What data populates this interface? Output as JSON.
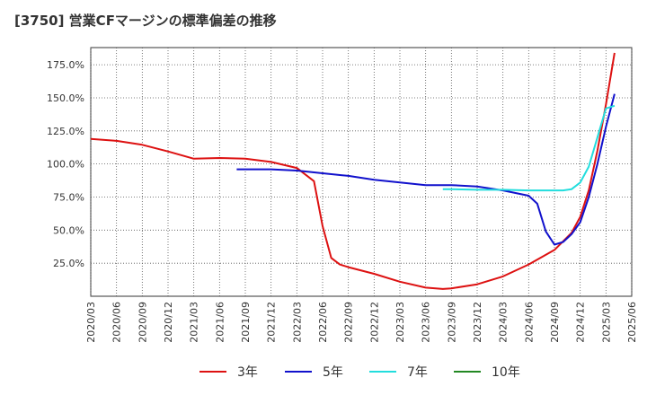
{
  "chart_data": {
    "type": "line",
    "title": "[3750]  営業CFマージンの標準偏差の推移",
    "xlabel": "",
    "ylabel": "",
    "x_ticks": [
      "2020/03",
      "2020/06",
      "2020/09",
      "2020/12",
      "2021/03",
      "2021/06",
      "2021/09",
      "2021/12",
      "2022/03",
      "2022/06",
      "2022/09",
      "2022/12",
      "2023/03",
      "2023/06",
      "2023/09",
      "2023/12",
      "2024/03",
      "2024/06",
      "2024/09",
      "2024/12",
      "2025/03",
      "2025/06"
    ],
    "y_ticks": [
      "25.0%",
      "50.0%",
      "75.0%",
      "100.0%",
      "125.0%",
      "150.0%",
      "175.0%"
    ],
    "y_tick_values": [
      25,
      50,
      75,
      100,
      125,
      150,
      175
    ],
    "ylim": [
      0,
      188
    ],
    "grid": true,
    "legend_position": "bottom",
    "series": [
      {
        "name": "3年",
        "color": "#dd1111",
        "points": [
          [
            "2020/03",
            119
          ],
          [
            "2020/06",
            117.5
          ],
          [
            "2020/09",
            114.5
          ],
          [
            "2020/12",
            109.5
          ],
          [
            "2021/03",
            104
          ],
          [
            "2021/06",
            104.5
          ],
          [
            "2021/09",
            104
          ],
          [
            "2021/12",
            101.5
          ],
          [
            "2022/03",
            97
          ],
          [
            "2022/05",
            87
          ],
          [
            "2022/06",
            53
          ],
          [
            "2022/07",
            29
          ],
          [
            "2022/08",
            24
          ],
          [
            "2022/09",
            22
          ],
          [
            "2022/12",
            17
          ],
          [
            "2023/03",
            11
          ],
          [
            "2023/06",
            6.5
          ],
          [
            "2023/08",
            5.5
          ],
          [
            "2023/09",
            6
          ],
          [
            "2023/12",
            9
          ],
          [
            "2024/03",
            15
          ],
          [
            "2024/06",
            24
          ],
          [
            "2024/09",
            35
          ],
          [
            "2024/11",
            48
          ],
          [
            "2024/12",
            60
          ],
          [
            "2025/01",
            80
          ],
          [
            "2025/02",
            110
          ],
          [
            "2025/03",
            145
          ],
          [
            "2025/04",
            184
          ]
        ]
      },
      {
        "name": "5年",
        "color": "#1111cc",
        "points": [
          [
            "2021/08",
            96
          ],
          [
            "2021/09",
            96
          ],
          [
            "2021/12",
            96
          ],
          [
            "2022/03",
            95
          ],
          [
            "2022/06",
            93
          ],
          [
            "2022/09",
            91
          ],
          [
            "2022/12",
            88
          ],
          [
            "2023/03",
            86
          ],
          [
            "2023/06",
            84
          ],
          [
            "2023/09",
            84
          ],
          [
            "2023/12",
            83
          ],
          [
            "2024/03",
            80
          ],
          [
            "2024/06",
            76
          ],
          [
            "2024/07",
            70
          ],
          [
            "2024/08",
            49
          ],
          [
            "2024/09",
            39
          ],
          [
            "2024/10",
            41
          ],
          [
            "2024/11",
            47
          ],
          [
            "2024/12",
            56
          ],
          [
            "2025/01",
            75
          ],
          [
            "2025/02",
            100
          ],
          [
            "2025/03",
            128
          ],
          [
            "2025/04",
            153
          ]
        ]
      },
      {
        "name": "7年",
        "color": "#22dddd",
        "points": [
          [
            "2023/08",
            81
          ],
          [
            "2023/09",
            81
          ],
          [
            "2023/12",
            80.5
          ],
          [
            "2024/03",
            80.5
          ],
          [
            "2024/06",
            80
          ],
          [
            "2024/09",
            80
          ],
          [
            "2024/10",
            80
          ],
          [
            "2024/11",
            81
          ],
          [
            "2024/12",
            86
          ],
          [
            "2025/01",
            98
          ],
          [
            "2025/02",
            120
          ],
          [
            "2025/03",
            142
          ],
          [
            "2025/04",
            144
          ]
        ]
      },
      {
        "name": "10年",
        "color": "#228822",
        "points": []
      }
    ]
  }
}
